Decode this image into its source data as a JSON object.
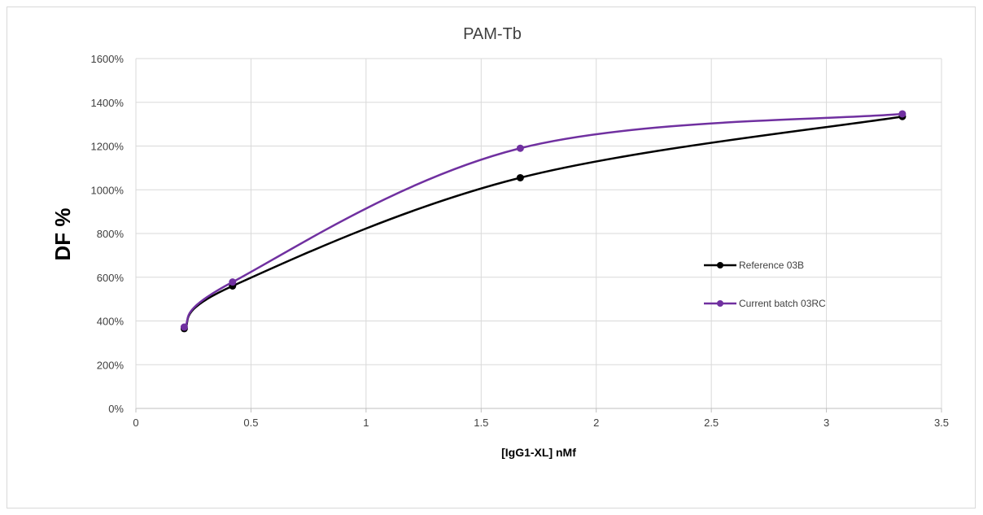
{
  "chart_data": {
    "type": "line",
    "title": "PAM-Tb",
    "xlabel": "[IgG1-XL] nMf",
    "ylabel": "DF %",
    "xlim": [
      0,
      3.5
    ],
    "ylim": [
      0,
      1600
    ],
    "x_ticks": [
      "0",
      "0.5",
      "1",
      "1.5",
      "2",
      "2.5",
      "3",
      "3.5"
    ],
    "y_ticks": [
      "0%",
      "200%",
      "400%",
      "600%",
      "800%",
      "1000%",
      "1200%",
      "1400%",
      "1600%"
    ],
    "grid": true,
    "smooth": true,
    "legend_position": "right",
    "series": [
      {
        "name": "Reference 03B",
        "color": "#000000",
        "x": [
          0.21,
          0.42,
          1.67,
          3.33
        ],
        "y": [
          365,
          560,
          1055,
          1335
        ]
      },
      {
        "name": "Current batch 03RC",
        "color": "#7030a0",
        "x": [
          0.21,
          0.42,
          1.67,
          3.33
        ],
        "y": [
          372,
          578,
          1190,
          1347
        ]
      }
    ]
  }
}
